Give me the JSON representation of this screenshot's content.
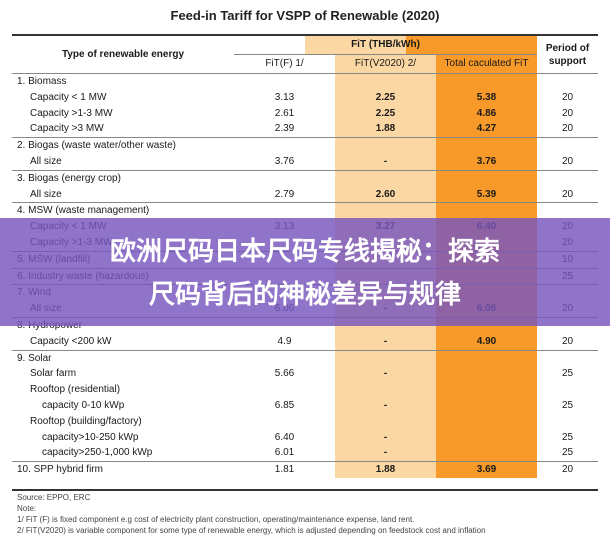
{
  "title": "Feed-in Tariff for VSPP of Renewable  (2020)",
  "header": {
    "type_label": "Type of renewable energy",
    "fit_group": "FiT (THB/kWh)",
    "period_label": "Period of support",
    "fit_f": "FiT(F) 1/",
    "fit_v": "FiT(V2020) 2/",
    "total": "Total caculated FiT"
  },
  "rows": [
    {
      "label": "1. Biomass",
      "f": "",
      "v": "",
      "t": "",
      "p": "",
      "section": true,
      "indent": 0
    },
    {
      "label": "Capacity < 1 MW",
      "f": "3.13",
      "v": "2.25",
      "t": "5.38",
      "p": "20",
      "section": false,
      "indent": 1
    },
    {
      "label": "Capacity >1-3 MW",
      "f": "2.61",
      "v": "2.25",
      "t": "4.86",
      "p": "20",
      "section": false,
      "indent": 1
    },
    {
      "label": "Capacity >3 MW",
      "f": "2.39",
      "v": "1.88",
      "t": "4.27",
      "p": "20",
      "section": false,
      "indent": 1
    },
    {
      "label": "2. Biogas (waste water/other waste)",
      "f": "",
      "v": "",
      "t": "",
      "p": "",
      "section": true,
      "indent": 0
    },
    {
      "label": "All size",
      "f": "3.76",
      "v": "-",
      "t": "3.76",
      "p": "20",
      "section": false,
      "indent": 1
    },
    {
      "label": "3. Biogas (energy crop)",
      "f": "",
      "v": "",
      "t": "",
      "p": "",
      "section": true,
      "indent": 0
    },
    {
      "label": "All size",
      "f": "2.79",
      "v": "2.60",
      "t": "5.39",
      "p": "20",
      "section": false,
      "indent": 1
    },
    {
      "label": "4. MSW (waste management)",
      "f": "",
      "v": "",
      "t": "",
      "p": "",
      "section": true,
      "indent": 0
    },
    {
      "label": "Capacity < 1 MW",
      "f": "3.13",
      "v": "3.27",
      "t": "6.40",
      "p": "20",
      "section": false,
      "indent": 1
    },
    {
      "label": "Capacity >1-3 MW",
      "f": "",
      "v": "",
      "t": "",
      "p": "20",
      "section": false,
      "indent": 1
    },
    {
      "label": "5. MSW (landfill)",
      "f": "",
      "v": "",
      "t": "",
      "p": "10",
      "section": true,
      "indent": 0
    },
    {
      "label": "6. Industry waste (hazardous)",
      "f": "",
      "v": "",
      "t": "",
      "p": "25",
      "section": true,
      "indent": 0
    },
    {
      "label": "7. Wind",
      "f": "",
      "v": "",
      "t": "",
      "p": "",
      "section": true,
      "indent": 0
    },
    {
      "label": "All size",
      "f": "6.06",
      "v": "-",
      "t": "6.06",
      "p": "20",
      "section": false,
      "indent": 1
    },
    {
      "label": "8. Hydropower",
      "f": "",
      "v": "",
      "t": "",
      "p": "",
      "section": true,
      "indent": 0
    },
    {
      "label": "Capacity <200 kW",
      "f": "4.9",
      "v": "-",
      "t": "4.90",
      "p": "20",
      "section": false,
      "indent": 1
    },
    {
      "label": "9. Solar",
      "f": "",
      "v": "",
      "t": "",
      "p": "",
      "section": true,
      "indent": 0
    },
    {
      "label": "Solar farm",
      "f": "5.66",
      "v": "-",
      "t": "",
      "p": "25",
      "section": false,
      "indent": 1
    },
    {
      "label": "Rooftop  (residential)",
      "f": "",
      "v": "",
      "t": "",
      "p": "",
      "section": false,
      "indent": 1
    },
    {
      "label": "capacity 0-10 kWp",
      "f": "6.85",
      "v": "-",
      "t": "",
      "p": "25",
      "section": false,
      "indent": 3
    },
    {
      "label": "Rooftop  (building/factory)",
      "f": "",
      "v": "",
      "t": "",
      "p": "",
      "section": false,
      "indent": 1
    },
    {
      "label": "capacity>10-250 kWp",
      "f": "6.40",
      "v": "-",
      "t": "",
      "p": "25",
      "section": false,
      "indent": 3
    },
    {
      "label": "capacity>250-1,000 kWp",
      "f": "6.01",
      "v": "-",
      "t": "",
      "p": "25",
      "section": false,
      "indent": 3
    },
    {
      "label": "10. SPP hybrid firm",
      "f": "1.81",
      "v": "1.88",
      "t": "3.69",
      "p": "20",
      "section": true,
      "indent": 0
    }
  ],
  "footer": {
    "source": "Source: EPPO, ERC",
    "note": "Note:",
    "note1": "1/ FiT (F) is fixed component e.g cost of electricity plant construction, operating/maintenance expense, land rent.",
    "note2": "2/ FiT(V2020) is variable component for some type of renewable energy, which is adjusted depending on feedstock cost and inflation"
  },
  "banner": {
    "line1": "欧洲尺码日本尺码专线揭秘：探索",
    "line2": "尺码背后的神秘差异与规律"
  }
}
